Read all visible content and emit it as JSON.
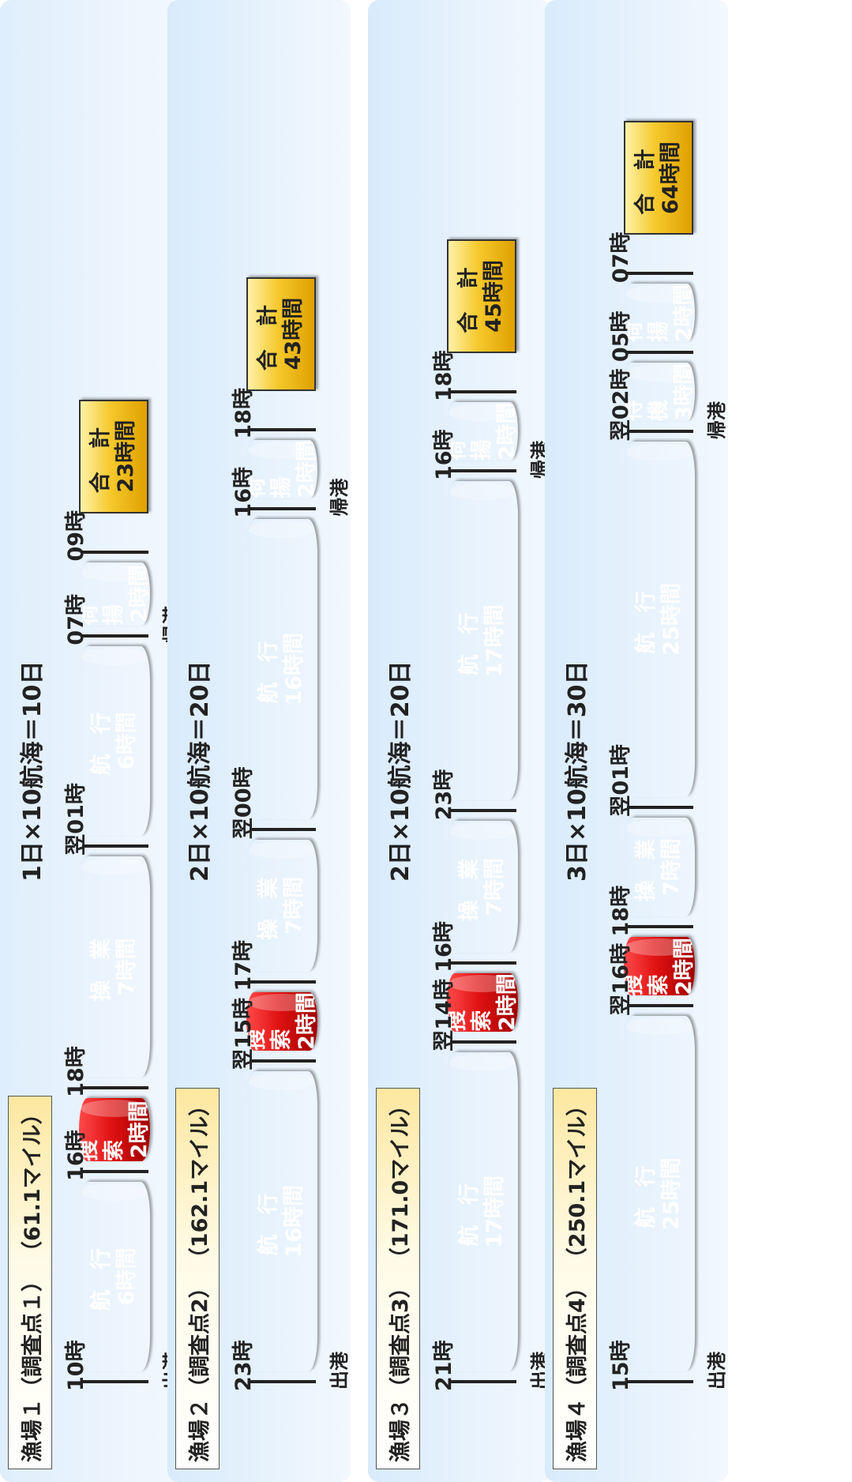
{
  "colors": {
    "navigation": "#1f6a22",
    "search": "#e01212",
    "operation": "#15287e",
    "unloading": "#f7bd1c",
    "standby": "#9a9a9a",
    "total": "#f5c92c"
  },
  "grounds": [
    {
      "name": "漁場１",
      "point": "（調査点１）",
      "distance": "（61.1マイル）",
      "formula": "1日×10航海＝10日",
      "segments": [
        {
          "kind": "navigation",
          "name": "航 行",
          "duration": "6時間",
          "hours": 6
        },
        {
          "kind": "search",
          "name": "捜 索",
          "duration": "2時間",
          "hours": 2
        },
        {
          "kind": "operation",
          "name": "操 業",
          "duration": "7時間",
          "hours": 7
        },
        {
          "kind": "navigation",
          "name": "航 行",
          "duration": "6時間",
          "hours": 6
        },
        {
          "kind": "unloading",
          "name": "荷 揚",
          "duration": "2時間",
          "hours": 2
        }
      ],
      "times": [
        "10時",
        "16時",
        "18時",
        "翌01時",
        "07時",
        "09時"
      ],
      "depart": "出港",
      "return": "帰港",
      "total_label": "合 計",
      "total_value": "23時間"
    },
    {
      "name": "漁場２",
      "point": "（調査点2）",
      "distance": "（162.1マイル）",
      "formula": "2日×10航海＝20日",
      "segments": [
        {
          "kind": "navigation",
          "name": "航 行",
          "duration": "16時間",
          "hours": 16
        },
        {
          "kind": "search",
          "name": "捜 索",
          "duration": "2時間",
          "hours": 2
        },
        {
          "kind": "operation",
          "name": "操 業",
          "duration": "7時間",
          "hours": 7
        },
        {
          "kind": "navigation",
          "name": "航 行",
          "duration": "16時間",
          "hours": 16
        },
        {
          "kind": "unloading",
          "name": "荷 揚",
          "duration": "2時間",
          "hours": 2
        }
      ],
      "times": [
        "23時",
        "翌15時",
        "17時",
        "翌00時",
        "16時",
        "18時"
      ],
      "depart": "出港",
      "return": "帰港",
      "total_label": "合 計",
      "total_value": "43時間"
    },
    {
      "name": "漁場３",
      "point": "（調査点3）",
      "distance": "（171.0マイル）",
      "formula": "2日×10航海＝20日",
      "segments": [
        {
          "kind": "navigation",
          "name": "航 行",
          "duration": "17時間",
          "hours": 17
        },
        {
          "kind": "search",
          "name": "捜 索",
          "duration": "2時間",
          "hours": 2
        },
        {
          "kind": "operation",
          "name": "操 業",
          "duration": "7時間",
          "hours": 7
        },
        {
          "kind": "navigation",
          "name": "航 行",
          "duration": "17時間",
          "hours": 17
        },
        {
          "kind": "unloading",
          "name": "荷 揚",
          "duration": "2時間",
          "hours": 2
        }
      ],
      "times": [
        "21時",
        "翌14時",
        "16時",
        "23時",
        "16時",
        "18時"
      ],
      "depart": "出港",
      "return": "帰港",
      "total_label": "合 計",
      "total_value": "45時間"
    },
    {
      "name": "漁場４",
      "point": "（調査点4）",
      "distance": "（250.1マイル）",
      "formula": "3日×10航海＝30日",
      "segments": [
        {
          "kind": "navigation",
          "name": "航 行",
          "duration": "25時間",
          "hours": 25
        },
        {
          "kind": "search",
          "name": "捜 索",
          "duration": "2時間",
          "hours": 2
        },
        {
          "kind": "operation",
          "name": "操 業",
          "duration": "7時間",
          "hours": 7
        },
        {
          "kind": "navigation",
          "name": "航 行",
          "duration": "25時間",
          "hours": 25
        },
        {
          "kind": "standby",
          "name": "待 機",
          "duration": "3時間",
          "hours": 3
        },
        {
          "kind": "unloading",
          "name": "荷 揚",
          "duration": "2時間",
          "hours": 2
        }
      ],
      "times": [
        "15時",
        "翌16時",
        "18時",
        "翌01時",
        "翌02時",
        "05時",
        "07時"
      ],
      "depart": "出港",
      "return": "帰港",
      "total_label": "合 計",
      "total_value": "64時間"
    }
  ]
}
